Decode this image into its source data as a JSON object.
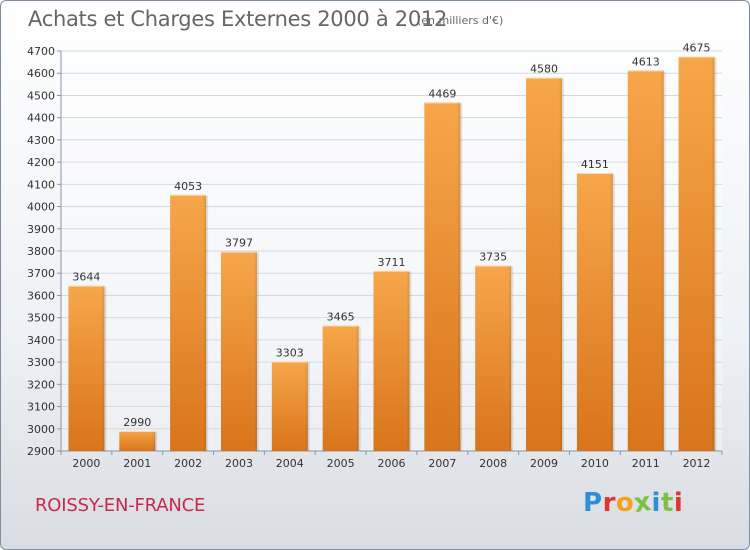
{
  "header": {
    "title": "Achats et Charges Externes 2000 à 2012",
    "subtitle": "(en milliers d'€)"
  },
  "footer": {
    "city": "ROISSY-EN-FRANCE",
    "brand": "Proxiti",
    "brand_colors": [
      "#2f8fd6",
      "#e4342f",
      "#f6a11a",
      "#7cc142",
      "#2f8fd6",
      "#7cc142",
      "#e4342f"
    ]
  },
  "colors": {
    "bar_light": "#f7a64a",
    "bar_dark": "#d9741a",
    "grid": "#d4d9e0",
    "tick_text": "#333333"
  },
  "chart_data": {
    "type": "bar",
    "title": "Achats et Charges Externes 2000 à 2012",
    "subtitle": "(en milliers d'€)",
    "categories": [
      "2000",
      "2001",
      "2002",
      "2003",
      "2004",
      "2005",
      "2006",
      "2007",
      "2008",
      "2009",
      "2010",
      "2011",
      "2012"
    ],
    "values": [
      3644,
      2990,
      4053,
      3797,
      3303,
      3465,
      3711,
      4469,
      3735,
      4580,
      4151,
      4613,
      4675
    ],
    "ylim": [
      2900,
      4700
    ],
    "yticks": [
      2900,
      3000,
      3100,
      3200,
      3300,
      3400,
      3500,
      3600,
      3700,
      3800,
      3900,
      4000,
      4100,
      4200,
      4300,
      4400,
      4500,
      4600,
      4700
    ],
    "grid": true,
    "data_labels": true
  }
}
